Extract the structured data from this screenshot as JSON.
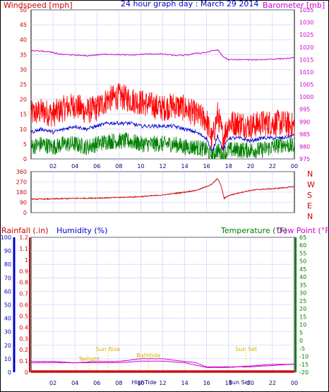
{
  "title": "24 hour graph day : March 29 2014",
  "colors": {
    "wind": "#ff0000",
    "gust_line": "#0000cc",
    "green": "#008000",
    "barometer": "#cc00cc",
    "direction": "#cc0000",
    "rain": "#cc0000",
    "humidity": "#0000cc",
    "temperature": "#008000",
    "dewpoint": "#cc00cc",
    "event": "#ffd700",
    "grid": "#c8c8ff"
  },
  "panel1": {
    "left_label": "Windspeed [mph]",
    "right_label": "Barometer [mb]",
    "left_ticks": [
      "0",
      "5",
      "10",
      "15",
      "20",
      "25",
      "30",
      "35",
      "40",
      "45",
      "50"
    ],
    "right_ticks": [
      "975",
      "980",
      "985",
      "990",
      "995",
      "1000",
      "1005",
      "1010",
      "1015",
      "1020",
      "1025",
      "1030",
      "1035"
    ]
  },
  "panel2": {
    "left_ticks": [
      "0",
      "90",
      "180",
      "270",
      "360"
    ],
    "compass": [
      "N",
      "W",
      "S",
      "E",
      "N"
    ]
  },
  "panel3": {
    "rain_label": "Rainfall (.in)",
    "humidity_label": "Humidity (%)",
    "temp_label": "Temperature (°F)",
    "dew_label": "Dew Point (°F)",
    "humidity_ticks": [
      "0",
      "10",
      "20",
      "30",
      "40",
      "50",
      "60",
      "70",
      "80",
      "90",
      "100"
    ],
    "rain_ticks": [
      "0",
      "0.1",
      "0.2",
      "0.3",
      "0.4",
      "0.5",
      "0.6",
      "0.7",
      "0.8",
      "0.9",
      "1",
      "1.1",
      "1.2"
    ],
    "temp_ticks": [
      "-20",
      "-15",
      "-10",
      "-5",
      "0",
      "5",
      "10",
      "15",
      "20",
      "25",
      "30",
      "35",
      "40",
      "45",
      "50",
      "55",
      "60",
      "65"
    ],
    "events": [
      {
        "label": "Sun Rise",
        "hour": 7.0
      },
      {
        "label": "Twilight",
        "hour": 5.3
      },
      {
        "label": "Bathtide",
        "hour": 10.7
      },
      {
        "label": "Sun Set",
        "hour": 19.6
      },
      {
        "label": "HighTide",
        "hour": 10.3
      },
      {
        "label": "Sun Set",
        "hour": 19.0
      }
    ]
  },
  "x_ticks": [
    "02",
    "04",
    "06",
    "08",
    "10",
    "12",
    "14",
    "16",
    "18",
    "20",
    "22",
    "00"
  ],
  "chart_data": [
    {
      "type": "line",
      "title": "24 hour graph day : March 29 2014",
      "x_unit": "hour",
      "xlim": [
        0,
        24
      ],
      "series": [
        {
          "name": "Windspeed [mph]",
          "axis": "left",
          "ylim": [
            0,
            50
          ],
          "x": [
            0,
            1,
            2,
            3,
            4,
            5,
            6,
            7,
            8,
            9,
            10,
            11,
            12,
            13,
            14,
            15,
            16,
            16.5,
            17,
            17.5,
            18,
            19,
            20,
            21,
            22,
            23,
            24
          ],
          "values": [
            15,
            16,
            15,
            17,
            18,
            16,
            17,
            20,
            21,
            20,
            19,
            18,
            17,
            18,
            17,
            15,
            13,
            6,
            15,
            7,
            12,
            12,
            11,
            12,
            12,
            12,
            11
          ]
        },
        {
          "name": "",
          "axis": "left",
          "ylim": [
            0,
            50
          ],
          "x": [
            0,
            1,
            2,
            3,
            4,
            5,
            6,
            7,
            8,
            9,
            10,
            11,
            12,
            13,
            14,
            15,
            16,
            16.5,
            17,
            17.5,
            18,
            19,
            20,
            21,
            22,
            23,
            24
          ],
          "values": [
            9,
            10,
            9,
            10,
            11,
            10,
            11,
            12,
            12,
            12,
            11,
            11,
            11,
            11,
            10,
            9,
            7,
            2,
            8,
            3,
            7,
            7,
            6,
            7,
            7,
            7,
            8
          ]
        },
        {
          "name": "",
          "axis": "left",
          "ylim": [
            0,
            50
          ],
          "x": [
            0,
            1,
            2,
            3,
            4,
            5,
            6,
            7,
            8,
            9,
            10,
            11,
            12,
            13,
            14,
            15,
            16,
            16.5,
            17,
            17.5,
            18,
            19,
            20,
            21,
            22,
            23,
            24
          ],
          "values": [
            4,
            5,
            4,
            5,
            5,
            4,
            5,
            6,
            6,
            6,
            5,
            5,
            5,
            5,
            4,
            4,
            3,
            1,
            3,
            1,
            3,
            3,
            3,
            3,
            4,
            5,
            4
          ]
        },
        {
          "name": "Barometer [mb]",
          "axis": "right",
          "ylim": [
            975,
            1035
          ],
          "x": [
            0,
            1,
            2,
            3,
            4,
            5,
            6,
            7,
            8,
            9,
            10,
            11,
            12,
            13,
            14,
            15,
            16,
            16.5,
            17,
            17.5,
            18,
            19,
            20,
            21,
            22,
            23,
            24
          ],
          "values": [
            1018.6,
            1018.4,
            1017.8,
            1016.9,
            1016.8,
            1016.5,
            1016.9,
            1017.2,
            1017.0,
            1016.8,
            1017.1,
            1017.3,
            1017.2,
            1016.7,
            1016.7,
            1017.5,
            1017.9,
            1018.5,
            1018.9,
            1016.2,
            1014.9,
            1015.0,
            1014.9,
            1015.0,
            1015.2,
            1015.4,
            1015.6
          ]
        }
      ]
    },
    {
      "type": "line",
      "ylabel": "",
      "xlim": [
        0,
        24
      ],
      "ylim": [
        0,
        360
      ],
      "series": [
        {
          "name": "",
          "x": [
            0,
            2,
            4,
            6,
            8,
            10,
            12,
            14,
            15,
            15.5,
            16,
            16.5,
            17,
            17.3,
            17.6,
            18,
            19,
            20,
            21,
            22,
            23,
            24
          ],
          "values": [
            118,
            120,
            125,
            128,
            133,
            140,
            155,
            180,
            195,
            210,
            230,
            250,
            300,
            240,
            125,
            150,
            175,
            195,
            205,
            210,
            218,
            228
          ]
        }
      ]
    },
    {
      "type": "line",
      "xlim": [
        0,
        24
      ],
      "series": [
        {
          "name": "Humidity (%)",
          "axis": "humidity",
          "ylim": [
            0,
            100
          ],
          "x": [
            0,
            2,
            4,
            6,
            8,
            10,
            12,
            14,
            15,
            16,
            18,
            20,
            22,
            24
          ],
          "values": [
            8,
            8,
            7,
            8,
            8,
            10,
            10,
            8,
            7,
            4,
            4,
            4,
            5,
            6
          ]
        },
        {
          "name": "Rainfall (.in)",
          "axis": "rain",
          "ylim": [
            0,
            1.2
          ],
          "x": [
            0,
            2,
            4,
            6,
            8,
            10,
            12,
            14,
            16,
            18,
            20,
            22,
            24
          ],
          "values": [
            0.01,
            0.01,
            0.01,
            0.01,
            0.01,
            0.01,
            0.01,
            0.01,
            0.01,
            0.01,
            0.01,
            0.01,
            0.01
          ]
        },
        {
          "name": "Temperature (°F)",
          "axis": "temp",
          "ylim": [
            -20,
            65
          ],
          "x": [
            0,
            24
          ],
          "values": [
            -20,
            -20
          ]
        },
        {
          "name": "Dew Point (°F)",
          "axis": "temp",
          "ylim": [
            -20,
            65
          ],
          "x": [
            0,
            2,
            4,
            6,
            8,
            10,
            12,
            14,
            16,
            18,
            20,
            22,
            24
          ],
          "values": [
            -14,
            -14,
            -14,
            -14,
            -14,
            -13,
            -13,
            -14,
            -17,
            -17,
            -16,
            -15,
            -15
          ]
        }
      ]
    }
  ]
}
